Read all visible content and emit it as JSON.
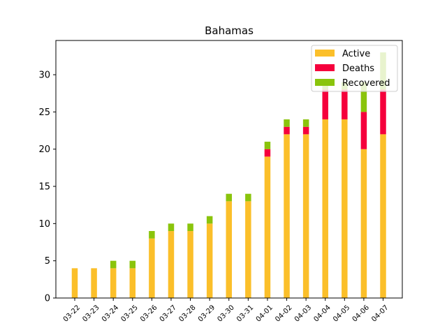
{
  "chart_data": {
    "type": "bar",
    "stacked": true,
    "title": "Bahamas",
    "xlabel": "",
    "ylabel": "",
    "categories": [
      "03-22",
      "03-23",
      "03-24",
      "03-25",
      "03-26",
      "03-27",
      "03-28",
      "03-29",
      "03-30",
      "03-31",
      "04-01",
      "04-02",
      "04-03",
      "04-04",
      "04-05",
      "04-06",
      "04-07"
    ],
    "series": [
      {
        "name": "Active",
        "color": "#fbbf2a",
        "values": [
          4,
          4,
          4,
          4,
          8,
          9,
          9,
          10,
          13,
          13,
          19,
          22,
          22,
          24,
          24,
          20,
          22
        ]
      },
      {
        "name": "Deaths",
        "color": "#f5003c",
        "values": [
          0,
          0,
          0,
          0,
          0,
          0,
          0,
          0,
          0,
          0,
          1,
          1,
          1,
          4,
          4,
          5,
          6
        ]
      },
      {
        "name": "Recovered",
        "color": "#8ac40c",
        "values": [
          0,
          0,
          1,
          1,
          1,
          1,
          1,
          1,
          1,
          1,
          1,
          1,
          1,
          1,
          1,
          4,
          5
        ]
      }
    ],
    "ylim": [
      0,
      34.6
    ],
    "yticks": [
      0,
      5,
      10,
      15,
      20,
      25,
      30
    ],
    "grid": false,
    "legend_position": "top-right"
  }
}
